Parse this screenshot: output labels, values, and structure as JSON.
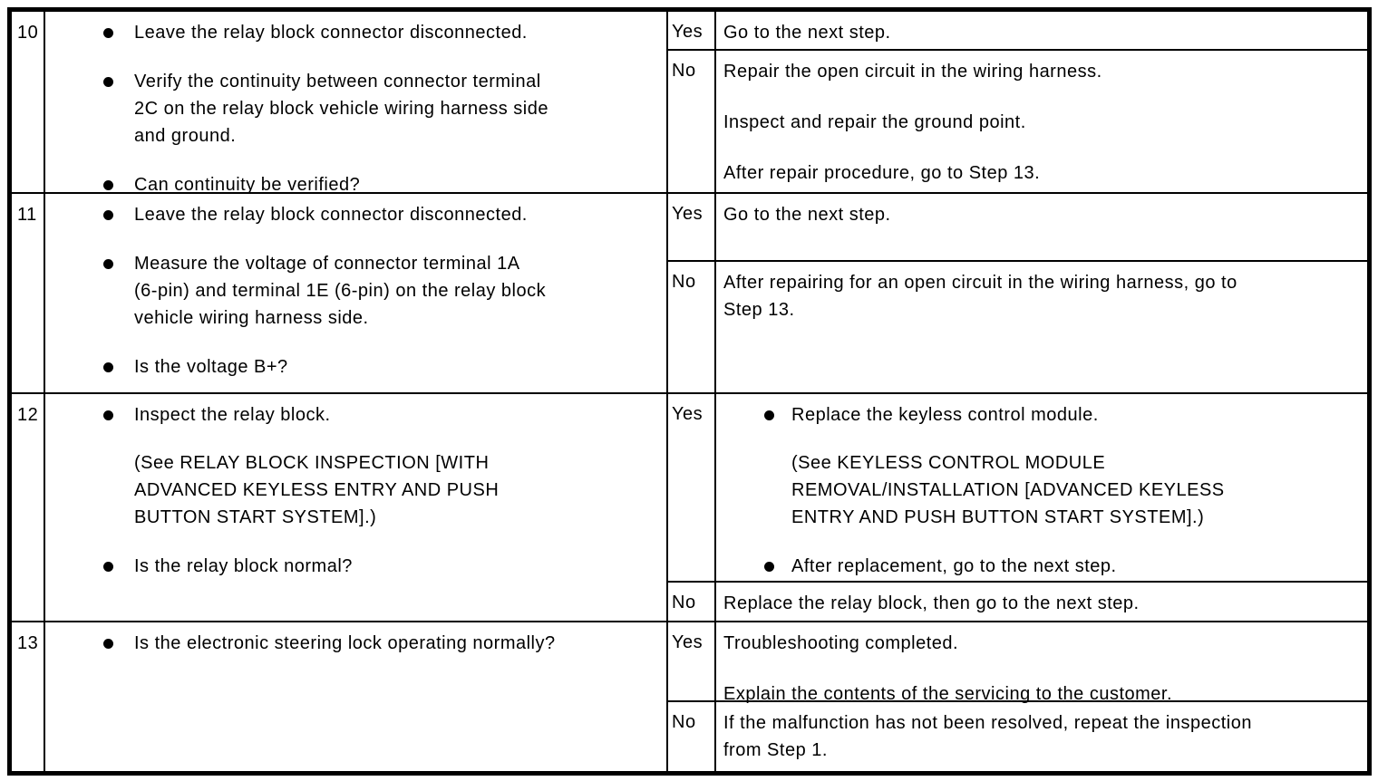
{
  "icons": {
    "bullet": "filled-circle"
  },
  "table": {
    "rows": [
      {
        "step": "10",
        "actions": [
          {
            "text": "Leave the relay block connector disconnected."
          },
          {
            "text": "Verify the continuity between connector terminal\n2C on the relay block vehicle wiring harness side\nand ground."
          },
          {
            "text": "Can continuity be verified?"
          }
        ],
        "outcomes": [
          {
            "label": "Yes",
            "paragraphs": [
              "Go to the next step."
            ]
          },
          {
            "label": "No",
            "paragraphs": [
              "Repair the open circuit in the wiring harness.",
              "Inspect and repair the ground point.",
              "After repair procedure, go to Step 13."
            ]
          }
        ]
      },
      {
        "step": "11",
        "actions": [
          {
            "text": "Leave the relay block connector disconnected."
          },
          {
            "text": "Measure the voltage of connector terminal 1A\n(6-pin) and terminal 1E (6-pin) on the relay block\nvehicle wiring harness side."
          },
          {
            "text": "Is the voltage B+?"
          }
        ],
        "outcomes": [
          {
            "label": "Yes",
            "paragraphs": [
              "Go to the next step."
            ]
          },
          {
            "label": "No",
            "paragraphs": [
              "After repairing for an open circuit in the wiring harness, go to\nStep 13."
            ]
          }
        ]
      },
      {
        "step": "12",
        "actions": [
          {
            "text": "Inspect the relay block.",
            "note": "(See RELAY BLOCK INSPECTION [WITH\nADVANCED KEYLESS ENTRY AND PUSH\nBUTTON START SYSTEM].)"
          },
          {
            "text": "Is the relay block normal?"
          }
        ],
        "outcomes": [
          {
            "label": "Yes",
            "items": [
              {
                "text": "Replace the keyless control module.",
                "note": "(See KEYLESS CONTROL MODULE\nREMOVAL/INSTALLATION [ADVANCED KEYLESS\nENTRY AND PUSH BUTTON START SYSTEM].)"
              },
              {
                "text": "After replacement, go to the next step."
              }
            ]
          },
          {
            "label": "No",
            "paragraphs": [
              "Replace the relay block, then go to the next step."
            ]
          }
        ]
      },
      {
        "step": "13",
        "actions": [
          {
            "text": "Is the electronic steering lock operating normally?"
          }
        ],
        "outcomes": [
          {
            "label": "Yes",
            "paragraphs": [
              "Troubleshooting completed.",
              "Explain the contents of the servicing to the customer."
            ]
          },
          {
            "label": "No",
            "paragraphs": [
              "If the malfunction has not been resolved, repeat the inspection\nfrom Step 1."
            ]
          }
        ]
      }
    ]
  }
}
